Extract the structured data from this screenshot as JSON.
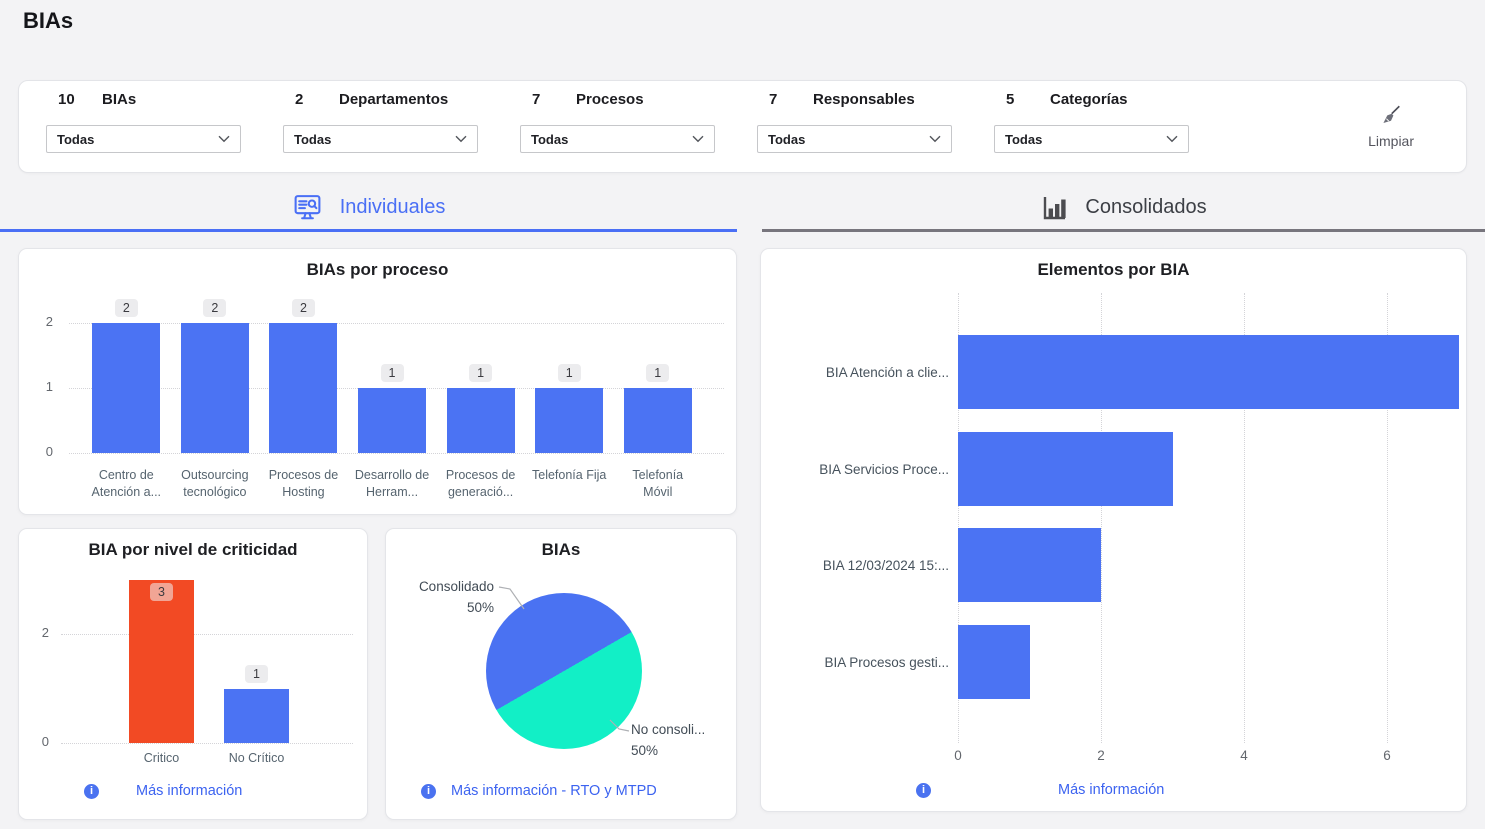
{
  "page": {
    "title": "BIAs"
  },
  "filter_bar": {
    "clear_label": "Limpiar",
    "filters": [
      {
        "count": "10",
        "label": "BIAs",
        "value": "Todas"
      },
      {
        "count": "2",
        "label": "Departamentos",
        "value": "Todas"
      },
      {
        "count": "7",
        "label": "Procesos",
        "value": "Todas"
      },
      {
        "count": "7",
        "label": "Responsables",
        "value": "Todas"
      },
      {
        "count": "5",
        "label": "Categorías",
        "value": "Todas"
      }
    ]
  },
  "tabs": {
    "individuales": {
      "label": "Individuales"
    },
    "consolidados": {
      "label": "Consolidados"
    }
  },
  "links": {
    "criticidad": "Más información",
    "pie": "Más información - RTO y MTPD",
    "elementos": "Más información"
  },
  "colors": {
    "accent_blue": "#4a6ff5",
    "bar_blue": "#4b73f3",
    "bar_red": "#f24a24",
    "pie_teal": "#12efc6",
    "link_blue": "#3c63f0"
  },
  "chart_data": [
    {
      "id": "bias_por_proceso",
      "type": "bar",
      "title": "BIAs por proceso",
      "categories": [
        "Centro de Atención a...",
        "Outsourcing tecnológico",
        "Procesos de Hosting",
        "Desarrollo de Herram...",
        "Procesos de generació...",
        "Telefonía Fija",
        "Telefonía Móvil"
      ],
      "values": [
        2,
        2,
        2,
        1,
        1,
        1,
        1
      ],
      "data_labels": [
        "2",
        "2",
        "2",
        "1",
        "1",
        "1",
        "1"
      ],
      "yticks": [
        0,
        1,
        2
      ],
      "ylim": [
        0,
        2.3
      ],
      "bar_color": "#4b73f3",
      "grid": "horizontal-dotted",
      "legend": "none"
    },
    {
      "id": "bia_por_nivel_de_criticidad",
      "type": "bar",
      "title": "BIA por nivel de criticidad",
      "categories": [
        "Critico",
        "No Crítico"
      ],
      "values": [
        3,
        1
      ],
      "data_labels": [
        "3",
        "1"
      ],
      "bar_colors": [
        "#f24a24",
        "#4b73f3"
      ],
      "yticks": [
        0,
        2
      ],
      "ylim": [
        0,
        3
      ],
      "grid": "horizontal-dotted",
      "legend": "none"
    },
    {
      "id": "bias_pie",
      "type": "pie",
      "title": "BIAs",
      "slices": [
        {
          "label": "Consolidado",
          "pct": "50%",
          "value": 50,
          "color": "#4a72f2"
        },
        {
          "label": "No consoli...",
          "pct": "50%",
          "value": 50,
          "color": "#12efc6"
        }
      ],
      "legend": "callout-labels"
    },
    {
      "id": "elementos_por_bia",
      "type": "bar",
      "orientation": "horizontal",
      "title": "Elementos por BIA",
      "categories": [
        "BIA Atención a clie...",
        "BIA Servicios Proce...",
        "BIA 12/03/2024 15:...",
        "BIA Procesos gesti..."
      ],
      "values": [
        7,
        3,
        2,
        1
      ],
      "xticks": [
        0,
        2,
        4,
        6
      ],
      "xlim": [
        0,
        7.1
      ],
      "bar_color": "#4b73f3",
      "grid": "vertical-dotted",
      "legend": "none"
    }
  ]
}
